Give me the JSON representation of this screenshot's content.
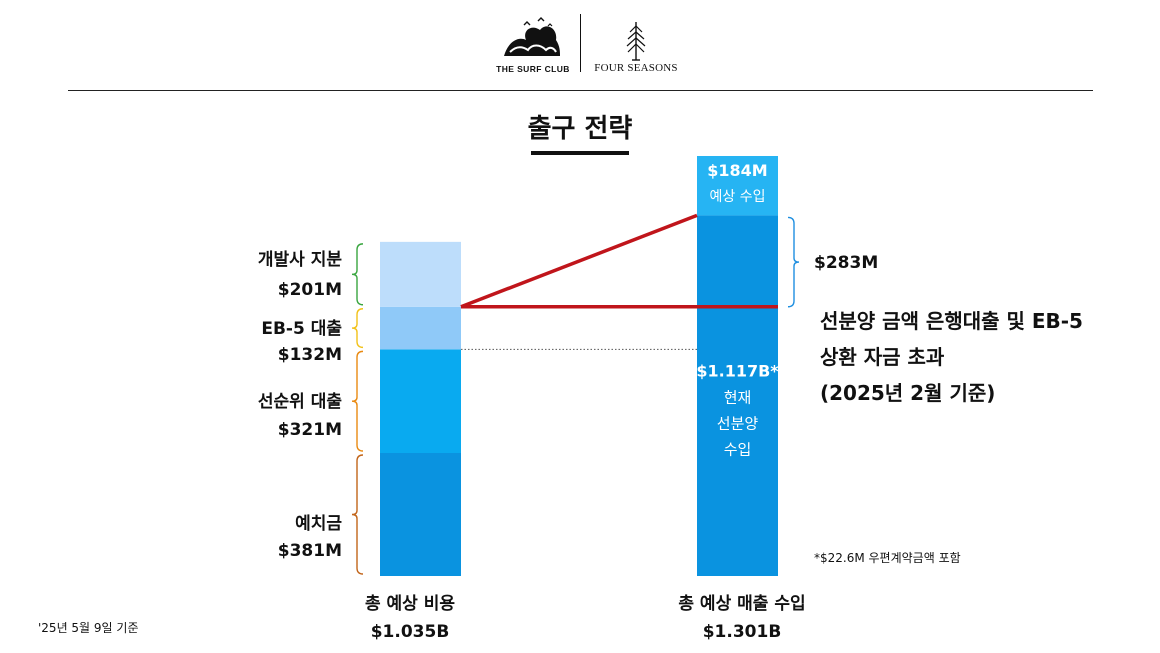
{
  "header": {
    "surf_club_logo": "THE SURF CLUB",
    "four_seasons_logo": "FOUR SEASONS"
  },
  "title": "출구 전략",
  "chart_data": {
    "type": "bar",
    "stacked": true,
    "categories": [
      "총 예상 비용",
      "총 예상 매출 수입"
    ],
    "totals": [
      "$1.035B",
      "$1.301B"
    ],
    "cost_stack": [
      {
        "name": "예치금",
        "value": 381,
        "label": "$381M",
        "color": "#0a93e0"
      },
      {
        "name": "선순위 대출",
        "value": 321,
        "label": "$321M",
        "color": "#09aaf0"
      },
      {
        "name": "EB-5 대출",
        "value": 132,
        "label": "$132M",
        "color": "#8fc9f8"
      },
      {
        "name": "개발사 지분",
        "value": 201,
        "label": "$201M",
        "color": "#bdddfb"
      }
    ],
    "revenue_stack": [
      {
        "value": 1117,
        "label": "$1.117B*",
        "lines": [
          "현재",
          "선분양",
          "수입"
        ],
        "color": "#0a93e0"
      },
      {
        "value": 184,
        "label": "$184M",
        "lines": [
          "예상 수입"
        ],
        "color": "#26b4f3"
      }
    ],
    "bracket_label": "$283M",
    "bracket_colors": {
      "developer_equity": "#3aa640",
      "eb5": "#f2c21a",
      "senior": "#e98a12",
      "deposit": "#c2651a",
      "revenue": "#1f8fe0"
    },
    "line_color": "#c0151b",
    "annotation_lines": [
      "선분양 금액 은행대출 및 EB-5",
      "상환 자금 초과",
      "(2025년 2월 기준)"
    ],
    "footnote": "*$22.6M 우편계약금액 포함"
  },
  "footer": {
    "date_note": "'25년 5월 9일 기준"
  }
}
